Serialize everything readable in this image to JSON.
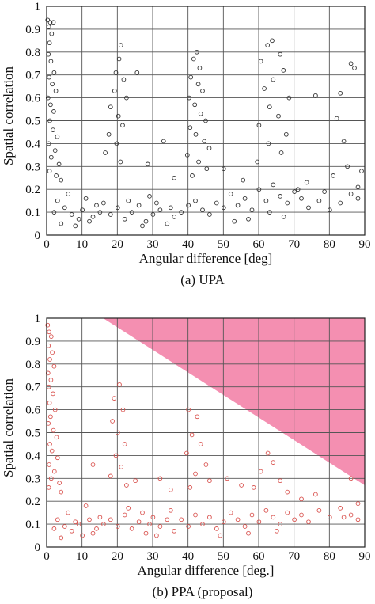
{
  "chart_data": [
    {
      "type": "scatter",
      "title": "",
      "caption": "(a) UPA",
      "xlabel": "Angular difference [deg]",
      "ylabel": "Spatial correlation",
      "xlim": [
        0,
        90
      ],
      "ylim": [
        0,
        1
      ],
      "xticks": [
        "0",
        "10",
        "20",
        "30",
        "40",
        "50",
        "60",
        "70",
        "80",
        "90"
      ],
      "yticks": [
        "0",
        "0.1",
        "0.2",
        "0.3",
        "0.4",
        "0.5",
        "0.6",
        "0.7",
        "0.8",
        "0.9",
        "1"
      ],
      "grid": true,
      "marker_color": "#333333",
      "points": [
        [
          0.3,
          0.94
        ],
        [
          0.6,
          0.91
        ],
        [
          1.0,
          0.93
        ],
        [
          1.4,
          0.88
        ],
        [
          0.8,
          0.84
        ],
        [
          1.9,
          0.93
        ],
        [
          0.5,
          0.79
        ],
        [
          1.2,
          0.76
        ],
        [
          2.1,
          0.71
        ],
        [
          0.7,
          0.69
        ],
        [
          1.6,
          0.66
        ],
        [
          2.6,
          0.63
        ],
        [
          0.4,
          0.6
        ],
        [
          1.1,
          0.57
        ],
        [
          2.0,
          0.54
        ],
        [
          0.9,
          0.5
        ],
        [
          1.8,
          0.46
        ],
        [
          3.0,
          0.43
        ],
        [
          0.6,
          0.4
        ],
        [
          2.4,
          0.37
        ],
        [
          1.3,
          0.34
        ],
        [
          3.5,
          0.31
        ],
        [
          0.8,
          0.28
        ],
        [
          2.7,
          0.26
        ],
        [
          4.1,
          0.24
        ],
        [
          21.0,
          0.83
        ],
        [
          20.5,
          0.77
        ],
        [
          19.6,
          0.71
        ],
        [
          21.8,
          0.68
        ],
        [
          19.2,
          0.63
        ],
        [
          22.6,
          0.6
        ],
        [
          18.1,
          0.56
        ],
        [
          20.3,
          0.52
        ],
        [
          21.5,
          0.48
        ],
        [
          17.6,
          0.44
        ],
        [
          19.8,
          0.4
        ],
        [
          16.6,
          0.36
        ],
        [
          20.9,
          0.32
        ],
        [
          42.5,
          0.8
        ],
        [
          41.6,
          0.77
        ],
        [
          43.3,
          0.73
        ],
        [
          40.8,
          0.69
        ],
        [
          42.9,
          0.66
        ],
        [
          44.1,
          0.63
        ],
        [
          40.3,
          0.6
        ],
        [
          41.9,
          0.57
        ],
        [
          43.6,
          0.53
        ],
        [
          45.0,
          0.5
        ],
        [
          40.6,
          0.47
        ],
        [
          42.2,
          0.44
        ],
        [
          44.6,
          0.41
        ],
        [
          46.0,
          0.38
        ],
        [
          39.8,
          0.35
        ],
        [
          43.0,
          0.32
        ],
        [
          45.3,
          0.29
        ],
        [
          41.2,
          0.26
        ],
        [
          63.8,
          0.85
        ],
        [
          62.5,
          0.83
        ],
        [
          66.1,
          0.79
        ],
        [
          60.6,
          0.76
        ],
        [
          67.0,
          0.72
        ],
        [
          64.1,
          0.68
        ],
        [
          61.6,
          0.64
        ],
        [
          68.6,
          0.6
        ],
        [
          63.1,
          0.56
        ],
        [
          65.6,
          0.52
        ],
        [
          60.1,
          0.48
        ],
        [
          67.8,
          0.44
        ],
        [
          62.8,
          0.4
        ],
        [
          66.4,
          0.36
        ],
        [
          59.6,
          0.32
        ],
        [
          86.1,
          0.75
        ],
        [
          87.1,
          0.73
        ],
        [
          83.1,
          0.62
        ],
        [
          82.1,
          0.51
        ],
        [
          84.1,
          0.41
        ],
        [
          85.1,
          0.3
        ],
        [
          81.1,
          0.26
        ],
        [
          25.6,
          0.71
        ],
        [
          33.1,
          0.41
        ],
        [
          28.6,
          0.31
        ],
        [
          36.1,
          0.25
        ],
        [
          50.1,
          0.29
        ],
        [
          55.6,
          0.24
        ],
        [
          71.1,
          0.2
        ],
        [
          76.1,
          0.61
        ],
        [
          73.6,
          0.23
        ],
        [
          78.6,
          0.19
        ],
        [
          88.1,
          0.21
        ],
        [
          89.1,
          0.28
        ],
        [
          3.1,
          0.15
        ],
        [
          5.1,
          0.12
        ],
        [
          7.1,
          0.09
        ],
        [
          9.1,
          0.07
        ],
        [
          10.1,
          0.11
        ],
        [
          12.1,
          0.06
        ],
        [
          14.1,
          0.13
        ],
        [
          6.1,
          0.18
        ],
        [
          8.1,
          0.04
        ],
        [
          11.1,
          0.16
        ],
        [
          13.1,
          0.08
        ],
        [
          15.1,
          0.1
        ],
        [
          4.1,
          0.05
        ],
        [
          16.1,
          0.14
        ],
        [
          2.1,
          0.1
        ],
        [
          18.1,
          0.09
        ],
        [
          20.1,
          0.12
        ],
        [
          22.1,
          0.07
        ],
        [
          24.1,
          0.1
        ],
        [
          26.1,
          0.13
        ],
        [
          28.1,
          0.06
        ],
        [
          30.1,
          0.09
        ],
        [
          32.1,
          0.11
        ],
        [
          34.1,
          0.05
        ],
        [
          36.1,
          0.08
        ],
        [
          23.1,
          0.15
        ],
        [
          27.1,
          0.04
        ],
        [
          31.1,
          0.14
        ],
        [
          35.1,
          0.12
        ],
        [
          29.1,
          0.17
        ],
        [
          38.1,
          0.1
        ],
        [
          40.1,
          0.13
        ],
        [
          42.1,
          0.15
        ],
        [
          44.1,
          0.11
        ],
        [
          46.1,
          0.09
        ],
        [
          48.1,
          0.14
        ],
        [
          50.1,
          0.12
        ],
        [
          52.1,
          0.18
        ],
        [
          54.1,
          0.13
        ],
        [
          56.1,
          0.16
        ],
        [
          58.1,
          0.11
        ],
        [
          60.1,
          0.2
        ],
        [
          62.1,
          0.15
        ],
        [
          64.1,
          0.22
        ],
        [
          66.1,
          0.17
        ],
        [
          68.1,
          0.14
        ],
        [
          70.1,
          0.19
        ],
        [
          72.1,
          0.16
        ],
        [
          74.1,
          0.12
        ],
        [
          77.1,
          0.15
        ],
        [
          80.1,
          0.11
        ],
        [
          83.1,
          0.14
        ],
        [
          86.1,
          0.18
        ],
        [
          88.1,
          0.16
        ],
        [
          63.1,
          0.1
        ],
        [
          67.1,
          0.08
        ],
        [
          57.1,
          0.07
        ],
        [
          53.1,
          0.06
        ]
      ]
    },
    {
      "type": "scatter",
      "title": "",
      "caption": "(b) PPA (proposal)",
      "xlabel": "Angular difference [deg.]",
      "ylabel": "Spatial correlation",
      "xlim": [
        0,
        90
      ],
      "ylim": [
        0,
        1
      ],
      "xticks": [
        "0",
        "10",
        "20",
        "30",
        "40",
        "50",
        "60",
        "70",
        "80",
        "90"
      ],
      "yticks": [
        "0",
        "0.1",
        "0.2",
        "0.3",
        "0.4",
        "0.5",
        "0.6",
        "0.7",
        "0.8",
        "0.9",
        "1"
      ],
      "grid": true,
      "marker_color": "#d9534f",
      "shaded_region": {
        "color": "#f48fb1",
        "polygon": [
          [
            16,
            1
          ],
          [
            90,
            1
          ],
          [
            90,
            0.27
          ]
        ]
      },
      "points": [
        [
          0.3,
          0.97
        ],
        [
          0.7,
          0.94
        ],
        [
          1.3,
          0.92
        ],
        [
          0.5,
          0.88
        ],
        [
          1.6,
          0.85
        ],
        [
          0.9,
          0.82
        ],
        [
          2.1,
          0.79
        ],
        [
          0.4,
          0.76
        ],
        [
          1.2,
          0.73
        ],
        [
          0.6,
          0.7
        ],
        [
          1.8,
          0.67
        ],
        [
          0.8,
          0.63
        ],
        [
          2.4,
          0.6
        ],
        [
          1.1,
          0.57
        ],
        [
          0.5,
          0.54
        ],
        [
          1.9,
          0.51
        ],
        [
          2.8,
          0.48
        ],
        [
          0.9,
          0.45
        ],
        [
          1.5,
          0.42
        ],
        [
          3.1,
          0.39
        ],
        [
          0.7,
          0.36
        ],
        [
          2.2,
          0.33
        ],
        [
          1.3,
          0.3
        ],
        [
          3.6,
          0.28
        ],
        [
          0.6,
          0.26
        ],
        [
          4.1,
          0.24
        ],
        [
          20.6,
          0.71
        ],
        [
          19.1,
          0.65
        ],
        [
          21.6,
          0.6
        ],
        [
          18.6,
          0.55
        ],
        [
          20.1,
          0.5
        ],
        [
          22.1,
          0.45
        ],
        [
          19.6,
          0.4
        ],
        [
          21.1,
          0.35
        ],
        [
          18.1,
          0.31
        ],
        [
          22.6,
          0.27
        ],
        [
          40.1,
          0.6
        ],
        [
          42.6,
          0.57
        ],
        [
          41.1,
          0.49
        ],
        [
          43.6,
          0.45
        ],
        [
          39.6,
          0.41
        ],
        [
          45.1,
          0.36
        ],
        [
          42.1,
          0.32
        ],
        [
          46.1,
          0.29
        ],
        [
          40.6,
          0.26
        ],
        [
          62.6,
          0.41
        ],
        [
          64.1,
          0.37
        ],
        [
          60.6,
          0.33
        ],
        [
          66.1,
          0.29
        ],
        [
          58.6,
          0.26
        ],
        [
          68.1,
          0.24
        ],
        [
          13.1,
          0.36
        ],
        [
          25.1,
          0.29
        ],
        [
          32.1,
          0.3
        ],
        [
          35.1,
          0.25
        ],
        [
          51.1,
          0.3
        ],
        [
          55.1,
          0.27
        ],
        [
          72.1,
          0.21
        ],
        [
          76.1,
          0.23
        ],
        [
          86.1,
          0.3
        ],
        [
          84.1,
          0.13
        ],
        [
          88.1,
          0.19
        ],
        [
          3.1,
          0.12
        ],
        [
          5.1,
          0.09
        ],
        [
          7.1,
          0.07
        ],
        [
          9.1,
          0.1
        ],
        [
          10.1,
          0.05
        ],
        [
          12.1,
          0.12
        ],
        [
          14.1,
          0.08
        ],
        [
          6.1,
          0.15
        ],
        [
          8.1,
          0.11
        ],
        [
          11.1,
          0.18
        ],
        [
          13.1,
          0.06
        ],
        [
          15.1,
          0.13
        ],
        [
          4.1,
          0.04
        ],
        [
          16.1,
          0.1
        ],
        [
          2.1,
          0.08
        ],
        [
          18.1,
          0.12
        ],
        [
          20.1,
          0.09
        ],
        [
          22.1,
          0.14
        ],
        [
          24.1,
          0.08
        ],
        [
          26.1,
          0.11
        ],
        [
          28.1,
          0.06
        ],
        [
          30.1,
          0.13
        ],
        [
          32.1,
          0.09
        ],
        [
          34.1,
          0.12
        ],
        [
          36.1,
          0.07
        ],
        [
          23.1,
          0.17
        ],
        [
          27.1,
          0.15
        ],
        [
          31.1,
          0.05
        ],
        [
          35.1,
          0.16
        ],
        [
          29.1,
          0.1
        ],
        [
          38.1,
          0.12
        ],
        [
          40.1,
          0.09
        ],
        [
          42.1,
          0.14
        ],
        [
          44.1,
          0.1
        ],
        [
          46.1,
          0.13
        ],
        [
          48.1,
          0.08
        ],
        [
          50.1,
          0.11
        ],
        [
          52.1,
          0.15
        ],
        [
          54.1,
          0.12
        ],
        [
          56.1,
          0.09
        ],
        [
          58.1,
          0.14
        ],
        [
          60.1,
          0.11
        ],
        [
          62.1,
          0.16
        ],
        [
          64.1,
          0.13
        ],
        [
          66.1,
          0.1
        ],
        [
          68.1,
          0.15
        ],
        [
          70.1,
          0.12
        ],
        [
          72.1,
          0.14
        ],
        [
          74.1,
          0.11
        ],
        [
          77.1,
          0.16
        ],
        [
          80.1,
          0.13
        ],
        [
          83.1,
          0.17
        ],
        [
          86.1,
          0.14
        ],
        [
          88.1,
          0.12
        ],
        [
          65.1,
          0.07
        ],
        [
          57.1,
          0.06
        ],
        [
          49.1,
          0.05
        ]
      ]
    }
  ]
}
